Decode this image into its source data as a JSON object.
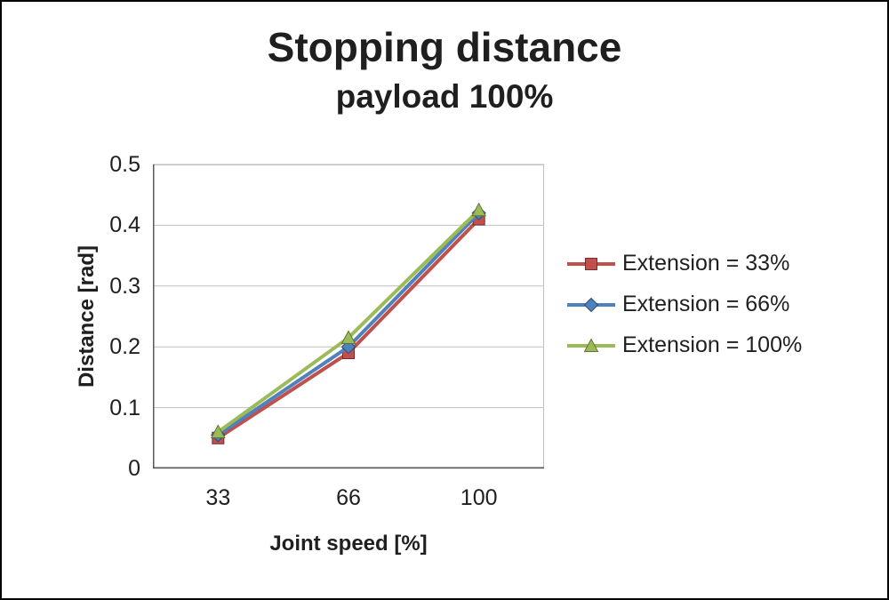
{
  "chart_data": {
    "type": "line",
    "title": "Stopping distance",
    "subtitle": "payload 100%",
    "xlabel": "Joint speed [%]",
    "ylabel": "Distance [rad]",
    "categories": [
      "33",
      "66",
      "100"
    ],
    "x": [
      33,
      66,
      100
    ],
    "series": [
      {
        "name": "Extension = 33%",
        "values": [
          0.05,
          0.19,
          0.41
        ],
        "color": "#C0504D",
        "edge": "#772C2A",
        "marker": "square"
      },
      {
        "name": "Extension = 66%",
        "values": [
          0.055,
          0.2,
          0.42
        ],
        "color": "#4F81BD",
        "edge": "#2C4D75",
        "marker": "diamond"
      },
      {
        "name": "Extension = 100%",
        "values": [
          0.06,
          0.215,
          0.425
        ],
        "color": "#9BBB59",
        "edge": "#5F7530",
        "marker": "triangle"
      }
    ],
    "ylim": [
      0,
      0.5
    ],
    "yticks": [
      0,
      0.1,
      0.2,
      0.3,
      0.4,
      0.5
    ],
    "grid": true,
    "legend_position": "right",
    "gridline_color": "#BFBFBF",
    "axis_line_color": "#595959"
  }
}
